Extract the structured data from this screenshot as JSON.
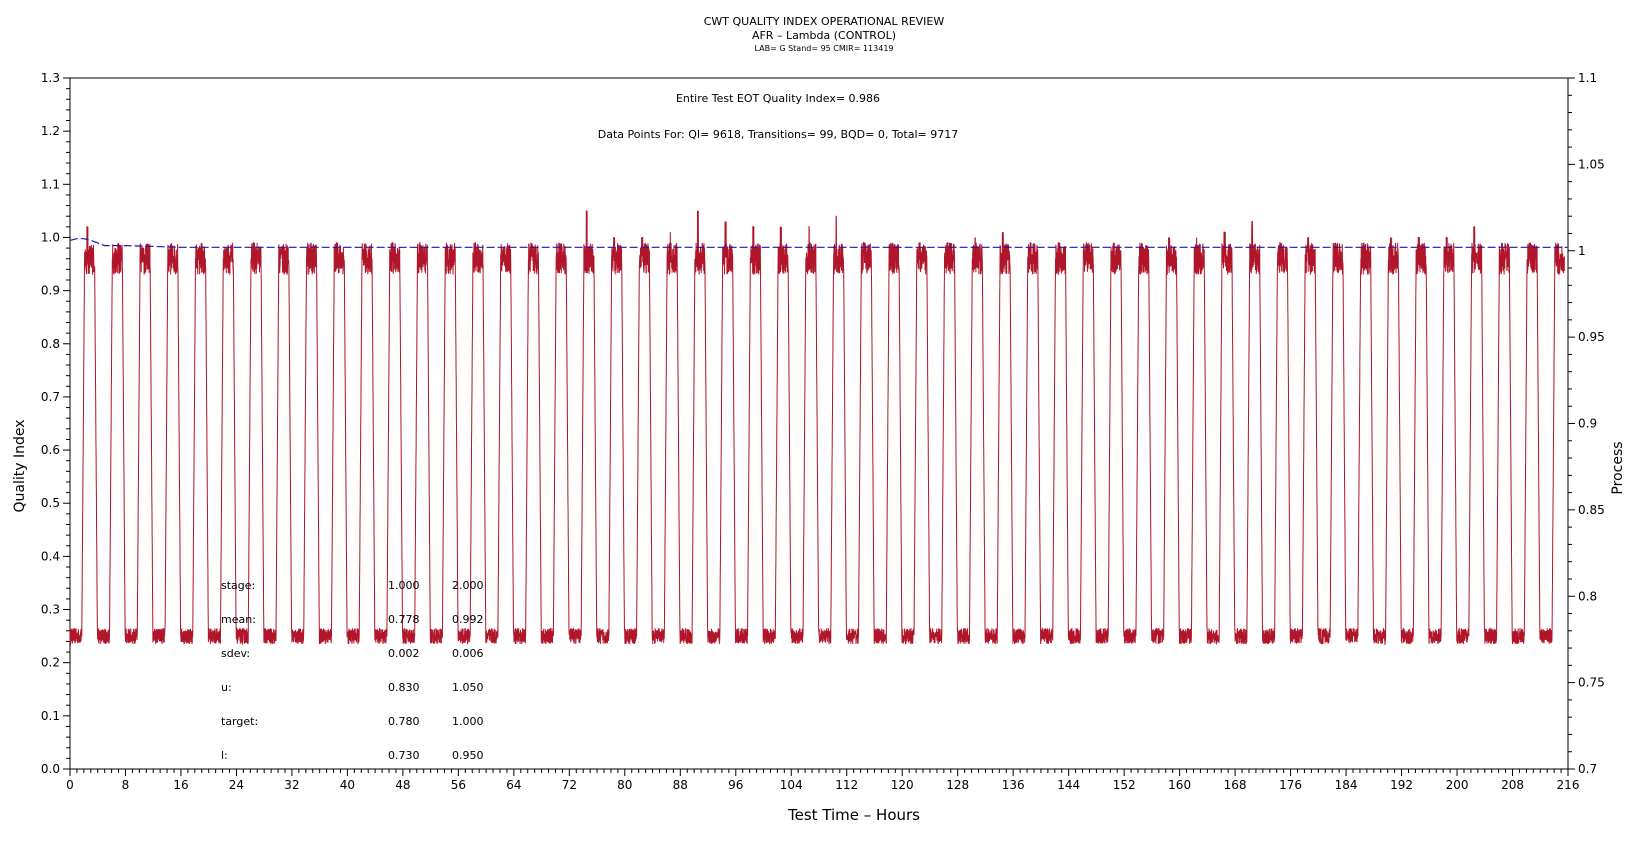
{
  "titles": {
    "line1": "CWT QUALITY INDEX OPERATIONAL REVIEW",
    "line2": "AFR – Lambda (CONTROL)",
    "line3": "LAB= G Stand= 95 CMIR= 113419"
  },
  "annotations": {
    "eot": "Entire Test EOT Quality Index=   0.986",
    "datapoints": "Data Points For: QI=  9618, Transitions=    99, BQD=     0, Total=  9717"
  },
  "stats_table": {
    "rows": [
      {
        "label": "stage:",
        "c1": "1.000",
        "c2": "2.000"
      },
      {
        "label": "mean:",
        "c1": "0.778",
        "c2": "0.992"
      },
      {
        "label": "sdev:",
        "c1": "0.002",
        "c2": "0.006"
      },
      {
        "label": "u:",
        "c1": "0.830",
        "c2": "1.050"
      },
      {
        "label": "target:",
        "c1": "0.780",
        "c2": "1.000"
      },
      {
        "label": "l:",
        "c1": "0.730",
        "c2": "0.950"
      }
    ]
  },
  "chart_data": {
    "type": "line",
    "xlabel": "Test Time – Hours",
    "ylabel": "Quality Index",
    "y2label": "Process",
    "xlim": [
      0,
      216
    ],
    "ylim": [
      0.0,
      1.3
    ],
    "y2lim": [
      0.7,
      1.1
    ],
    "xticks": [
      0,
      8,
      16,
      24,
      32,
      40,
      48,
      56,
      64,
      72,
      80,
      88,
      96,
      104,
      112,
      120,
      128,
      136,
      144,
      152,
      160,
      168,
      176,
      184,
      192,
      200,
      208,
      216
    ],
    "yticks": [
      0.0,
      0.1,
      0.2,
      0.3,
      0.4,
      0.5,
      0.6,
      0.7,
      0.8,
      0.9,
      1.0,
      1.1,
      1.2,
      1.3
    ],
    "yticklabels": [
      "0.0",
      "0.1",
      "0.2",
      "0.3",
      "0.4",
      "0.5",
      "0.6",
      "0.7",
      "0.8",
      "0.9",
      "1.0",
      "1.1",
      "1.2",
      "1.3"
    ],
    "y2ticks": [
      0.7,
      0.75,
      0.8,
      0.85,
      0.9,
      0.95,
      1.0,
      1.05,
      1.1
    ],
    "y2ticklabels": [
      "0.7",
      "0.75",
      "0.8",
      "0.85",
      "0.9",
      "0.95",
      "1",
      "1.05",
      "1.1"
    ],
    "series": [
      {
        "axis": "left",
        "color": "#b0152a",
        "cycle_hours": 4,
        "cycles": 54,
        "low_mean": 0.25,
        "high_mean": 0.96,
        "peak_values": [
          1.02,
          0.98,
          0.98,
          0.98,
          0.98,
          0.98,
          0.99,
          0.98,
          0.98,
          0.99,
          0.98,
          0.99,
          0.99,
          0.98,
          0.99,
          0.98,
          0.99,
          0.99,
          1.05,
          1.0,
          1.0,
          1.01,
          1.05,
          1.03,
          1.02,
          1.02,
          1.02,
          1.04,
          0.99,
          0.99,
          0.99,
          0.99,
          1.0,
          1.01,
          0.99,
          0.99,
          0.99,
          0.99,
          0.99,
          1.0,
          1.0,
          1.01,
          1.03,
          0.99,
          1.0,
          0.99,
          0.99,
          1.0,
          1.0,
          1.0,
          1.02,
          0.99,
          0.99,
          0.99
        ]
      },
      {
        "axis": "right",
        "color": "#1a1aa8",
        "style": "dashed",
        "x": [
          0,
          1,
          2,
          3,
          5,
          8,
          16,
          40,
          56,
          80,
          120,
          160,
          216
        ],
        "y": [
          1.006,
          1.007,
          1.007,
          1.006,
          1.003,
          1.003,
          1.002,
          1.002,
          1.002,
          1.002,
          1.002,
          1.002,
          1.002
        ]
      }
    ]
  }
}
